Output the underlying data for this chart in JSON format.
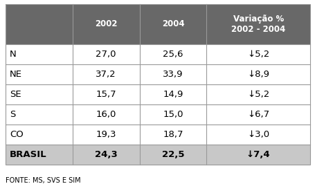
{
  "header_row": [
    "",
    "2002",
    "2004",
    "Variação %\n2002 - 2004"
  ],
  "rows": [
    [
      "N",
      "27,0",
      "25,6",
      "↓5,2"
    ],
    [
      "NE",
      "37,2",
      "33,9",
      "↓8,9"
    ],
    [
      "SE",
      "15,7",
      "14,9",
      "↓5,2"
    ],
    [
      "S",
      "16,0",
      "15,0",
      "↓6,7"
    ],
    [
      "CO",
      "19,3",
      "18,7",
      "↓3,0"
    ],
    [
      "BRASIL",
      "24,3",
      "22,5",
      "↓7,4"
    ]
  ],
  "header_bg": "#686868",
  "header_fg": "#ffffff",
  "brasil_bg": "#c8c8c8",
  "brasil_fg": "#000000",
  "normal_bg": "#ffffff",
  "normal_fg": "#000000",
  "border_color": "#999999",
  "footer": "FONTE: MS, SVS E SIM",
  "figsize": [
    4.55,
    2.66
  ],
  "dpi": 100,
  "fig_bg": "#ffffff"
}
